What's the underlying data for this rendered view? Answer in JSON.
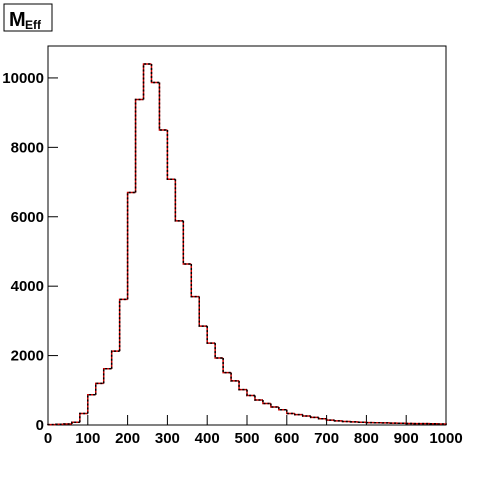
{
  "chart_data": {
    "type": "histogram",
    "title": "M",
    "title_subscript": "Eff",
    "bins": [
      0,
      20,
      40,
      60,
      80,
      100,
      120,
      140,
      160,
      180,
      200,
      220,
      240,
      260,
      280,
      300,
      320,
      340,
      360,
      380,
      400,
      420,
      440,
      460,
      480,
      500,
      520,
      540,
      560,
      580,
      600,
      620,
      640,
      660,
      680,
      700,
      720,
      740,
      760,
      780,
      800,
      820,
      840,
      860,
      880,
      900,
      920,
      940,
      960,
      980,
      1000
    ],
    "series": [
      {
        "color": "#cc0000",
        "dashed": false,
        "values": [
          10,
          20,
          30,
          80,
          330,
          870,
          1200,
          1620,
          2130,
          3620,
          6700,
          9380,
          10400,
          9870,
          8500,
          7080,
          5880,
          4640,
          3700,
          2850,
          2360,
          1930,
          1510,
          1270,
          1020,
          850,
          720,
          620,
          520,
          440,
          330,
          300,
          260,
          220,
          180,
          140,
          120,
          100,
          90,
          80,
          70,
          65,
          60,
          55,
          50,
          45,
          40,
          40,
          35,
          30
        ]
      },
      {
        "color": "#000000",
        "dashed": true,
        "values": [
          10,
          20,
          30,
          80,
          330,
          870,
          1200,
          1620,
          2130,
          3620,
          6700,
          9380,
          10400,
          9870,
          8500,
          7080,
          5880,
          4640,
          3700,
          2850,
          2360,
          1930,
          1510,
          1270,
          1020,
          850,
          720,
          620,
          520,
          440,
          330,
          300,
          260,
          220,
          180,
          140,
          120,
          100,
          90,
          80,
          70,
          65,
          60,
          55,
          50,
          45,
          40,
          40,
          35,
          30
        ]
      }
    ],
    "xlim": [
      0,
      1000
    ],
    "xticks": [
      0,
      100,
      200,
      300,
      400,
      500,
      600,
      700,
      800,
      900,
      1000
    ],
    "ylim": [
      0,
      10920
    ],
    "yticks": [
      0,
      2000,
      4000,
      6000,
      8000,
      10000
    ],
    "grid": false
  }
}
